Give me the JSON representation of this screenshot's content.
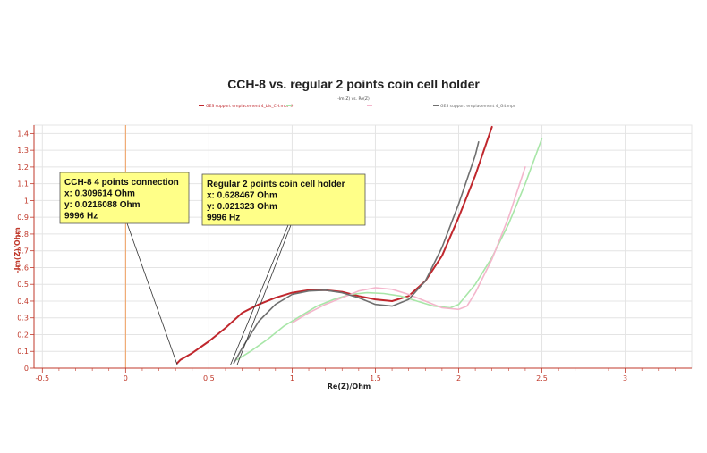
{
  "chart_data": {
    "type": "line",
    "title": "CCH-8 vs. regular 2 points coin cell holder",
    "subtitle": "-Im(Z) vs. Re(Z)",
    "xlabel": "Re(Z)/Ohm",
    "ylabel": "-Im(Z)/Ohm",
    "xlim": [
      -0.55,
      3.4
    ],
    "ylim": [
      0,
      1.45
    ],
    "x_ticks": [
      "-0.5",
      "0",
      "0.5",
      "1",
      "1.5",
      "2",
      "2.5",
      "3"
    ],
    "y_ticks": [
      "0",
      "0.1",
      "0.2",
      "0.3",
      "0.4",
      "0.5",
      "0.6",
      "0.7",
      "0.8",
      "0.9",
      "1",
      "1.1",
      "1.2",
      "1.3",
      "1.4"
    ],
    "grid": true,
    "legend_position": "top",
    "series": [
      {
        "name": "GES support emplacement 4_bis_CH.mpr #",
        "color": "#c0272d",
        "x": [
          0.31,
          0.33,
          0.4,
          0.5,
          0.6,
          0.7,
          0.8,
          0.9,
          1.0,
          1.1,
          1.2,
          1.3,
          1.4,
          1.5,
          1.6,
          1.7,
          1.8,
          1.9,
          2.0,
          2.1,
          2.2
        ],
        "y": [
          0.03,
          0.05,
          0.09,
          0.16,
          0.24,
          0.33,
          0.38,
          0.42,
          0.45,
          0.465,
          0.465,
          0.455,
          0.43,
          0.41,
          0.4,
          0.43,
          0.52,
          0.67,
          0.9,
          1.15,
          1.44
        ]
      },
      {
        "name": "",
        "color": "#a8e6a8",
        "x": [
          0.67,
          0.75,
          0.85,
          0.95,
          1.05,
          1.15,
          1.25,
          1.35,
          1.45,
          1.55,
          1.65,
          1.75,
          1.85,
          1.95,
          2.0,
          2.1,
          2.2,
          2.3,
          2.4,
          2.5
        ],
        "y": [
          0.05,
          0.1,
          0.17,
          0.25,
          0.31,
          0.37,
          0.41,
          0.44,
          0.45,
          0.445,
          0.43,
          0.4,
          0.37,
          0.36,
          0.38,
          0.5,
          0.66,
          0.86,
          1.1,
          1.37
        ]
      },
      {
        "name": "",
        "color": "#f4b6cc",
        "x": [
          1.0,
          1.1,
          1.2,
          1.3,
          1.4,
          1.5,
          1.6,
          1.7,
          1.8,
          1.9,
          2.0,
          2.05,
          2.1,
          2.2,
          2.3,
          2.4
        ],
        "y": [
          0.27,
          0.33,
          0.38,
          0.42,
          0.46,
          0.48,
          0.47,
          0.44,
          0.4,
          0.36,
          0.35,
          0.37,
          0.45,
          0.65,
          0.9,
          1.2
        ]
      },
      {
        "name": "GES support emplacement 4_G4.mpr",
        "color": "#6f6f6f",
        "x": [
          0.65,
          0.7,
          0.8,
          0.9,
          1.0,
          1.1,
          1.2,
          1.3,
          1.4,
          1.5,
          1.6,
          1.7,
          1.8,
          1.9,
          2.0,
          2.1,
          2.12
        ],
        "y": [
          0.03,
          0.12,
          0.28,
          0.38,
          0.44,
          0.46,
          0.465,
          0.45,
          0.42,
          0.38,
          0.37,
          0.41,
          0.52,
          0.72,
          0.98,
          1.27,
          1.35
        ]
      }
    ],
    "annotations": [
      {
        "lines": [
          "CCH-8 4 points connection",
          "x: 0.309614 Ohm",
          "y: 0.0216088 Ohm",
          "9996 Hz"
        ],
        "point": [
          0.31,
          0.02
        ]
      },
      {
        "lines": [
          "Regular 2 points coin cell holder",
          "x: 0.628467 Ohm",
          "y: 0.021323 Ohm",
          "9996 Hz"
        ],
        "point": [
          0.63,
          0.02
        ],
        "point2": [
          0.67,
          0.02
        ]
      }
    ],
    "cursor_x": 0
  }
}
